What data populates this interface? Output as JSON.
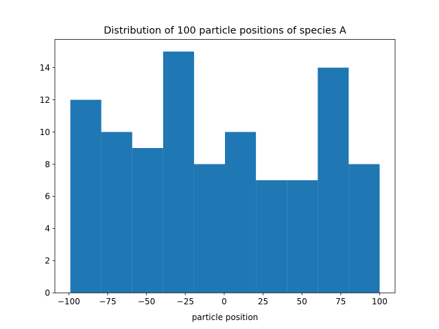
{
  "chart_data": {
    "type": "bar",
    "title": "Distribution of 100 particle positions of species A",
    "xlabel": "particle position",
    "ylabel": "",
    "bin_edges": [
      -99.0,
      -79.1,
      -59.2,
      -39.3,
      -19.4,
      0.5,
      20.4,
      40.3,
      60.2,
      80.1,
      100.0
    ],
    "values": [
      12,
      10,
      9,
      15,
      8,
      10,
      7,
      7,
      14,
      8
    ],
    "xlim": [
      -108.95,
      109.95
    ],
    "ylim": [
      0,
      15.75
    ],
    "xticks": [
      -100,
      -75,
      -50,
      -25,
      0,
      25,
      50,
      75,
      100
    ],
    "xtick_labels": [
      "−100",
      "−75",
      "−50",
      "−25",
      "0",
      "25",
      "50",
      "75",
      "100"
    ],
    "yticks": [
      0,
      2,
      4,
      6,
      8,
      10,
      12,
      14
    ],
    "ytick_labels": [
      "0",
      "2",
      "4",
      "6",
      "8",
      "10",
      "12",
      "14"
    ],
    "bar_color": "#1f77b4",
    "grid": false,
    "legend": "none"
  }
}
